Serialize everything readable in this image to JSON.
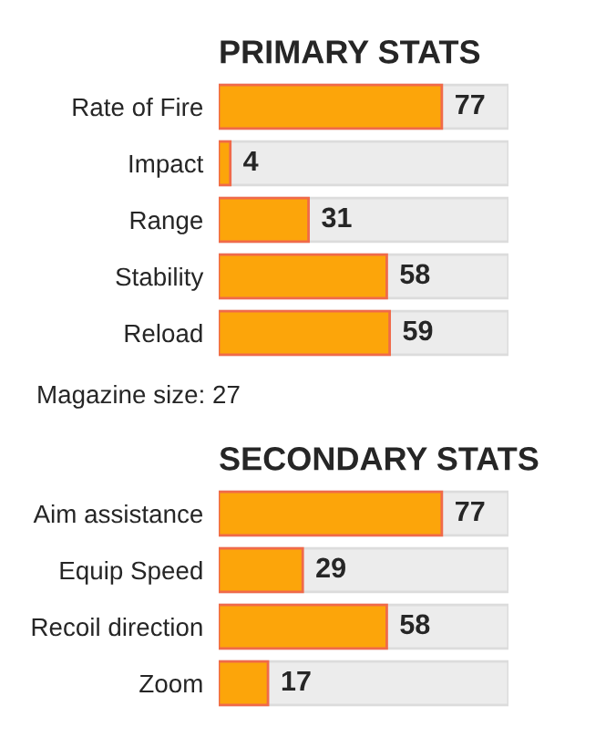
{
  "chart_data": [
    {
      "type": "bar",
      "orientation": "horizontal",
      "title": "PRIMARY STATS",
      "categories": [
        "Rate of Fire",
        "Impact",
        "Range",
        "Stability",
        "Reload"
      ],
      "values": [
        77,
        4,
        31,
        58,
        59
      ],
      "color": "#fca50a",
      "xlim": [
        0,
        100
      ],
      "data_labels": true,
      "tick_labels": "y",
      "annotations": [
        "Magazine size: 27"
      ]
    },
    {
      "type": "bar",
      "orientation": "horizontal",
      "title": "SECONDARY STATS",
      "categories": [
        "Aim assistance",
        "Equip Speed",
        "Recoil direction",
        "Zoom"
      ],
      "values": [
        77,
        29,
        58,
        17
      ],
      "color": "#fca50a",
      "xlim": [
        0,
        100
      ],
      "data_labels": true,
      "tick_labels": "y"
    }
  ]
}
